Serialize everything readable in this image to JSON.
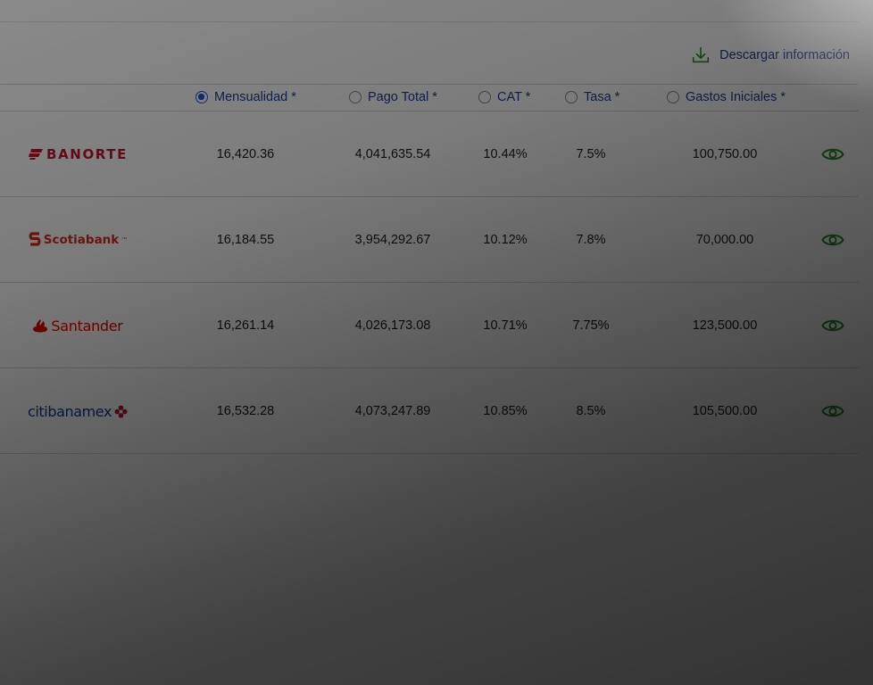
{
  "toolbar": {
    "download_label": "Descargar información",
    "download_icon": "download-icon"
  },
  "sort_options": [
    {
      "label": "Mensualidad *",
      "selected": true
    },
    {
      "label": "Pago Total *",
      "selected": false
    },
    {
      "label": "CAT *",
      "selected": false
    },
    {
      "label": "Tasa *",
      "selected": false
    },
    {
      "label": "Gastos Iniciales *",
      "selected": false
    }
  ],
  "banks": [
    {
      "name": "BANORTE",
      "monthly": "16,420.36",
      "total": "4,041,635.54",
      "cat": "10.44%",
      "rate": "7.5%",
      "initial_costs": "100,750.00"
    },
    {
      "name": "Scotiabank",
      "monthly": "16,184.55",
      "total": "3,954,292.67",
      "cat": "10.12%",
      "rate": "7.8%",
      "initial_costs": "70,000.00"
    },
    {
      "name": "Santander",
      "monthly": "16,261.14",
      "total": "4,026,173.08",
      "cat": "10.71%",
      "rate": "7.75%",
      "initial_costs": "123,500.00"
    },
    {
      "name": "citibanamex",
      "monthly": "16,532.28",
      "total": "4,073,247.89",
      "cat": "10.85%",
      "rate": "8.5%",
      "initial_costs": "105,500.00"
    }
  ],
  "colors": {
    "accent_blue": "#1d3d8f",
    "radio_selected": "#1a56d6",
    "eye_green": "#2e8b2e",
    "banorte_red": "#c8102e",
    "scotia_red": "#d52b1e",
    "santander_red": "#ec0000",
    "citi_blue": "#0a3a8c"
  }
}
